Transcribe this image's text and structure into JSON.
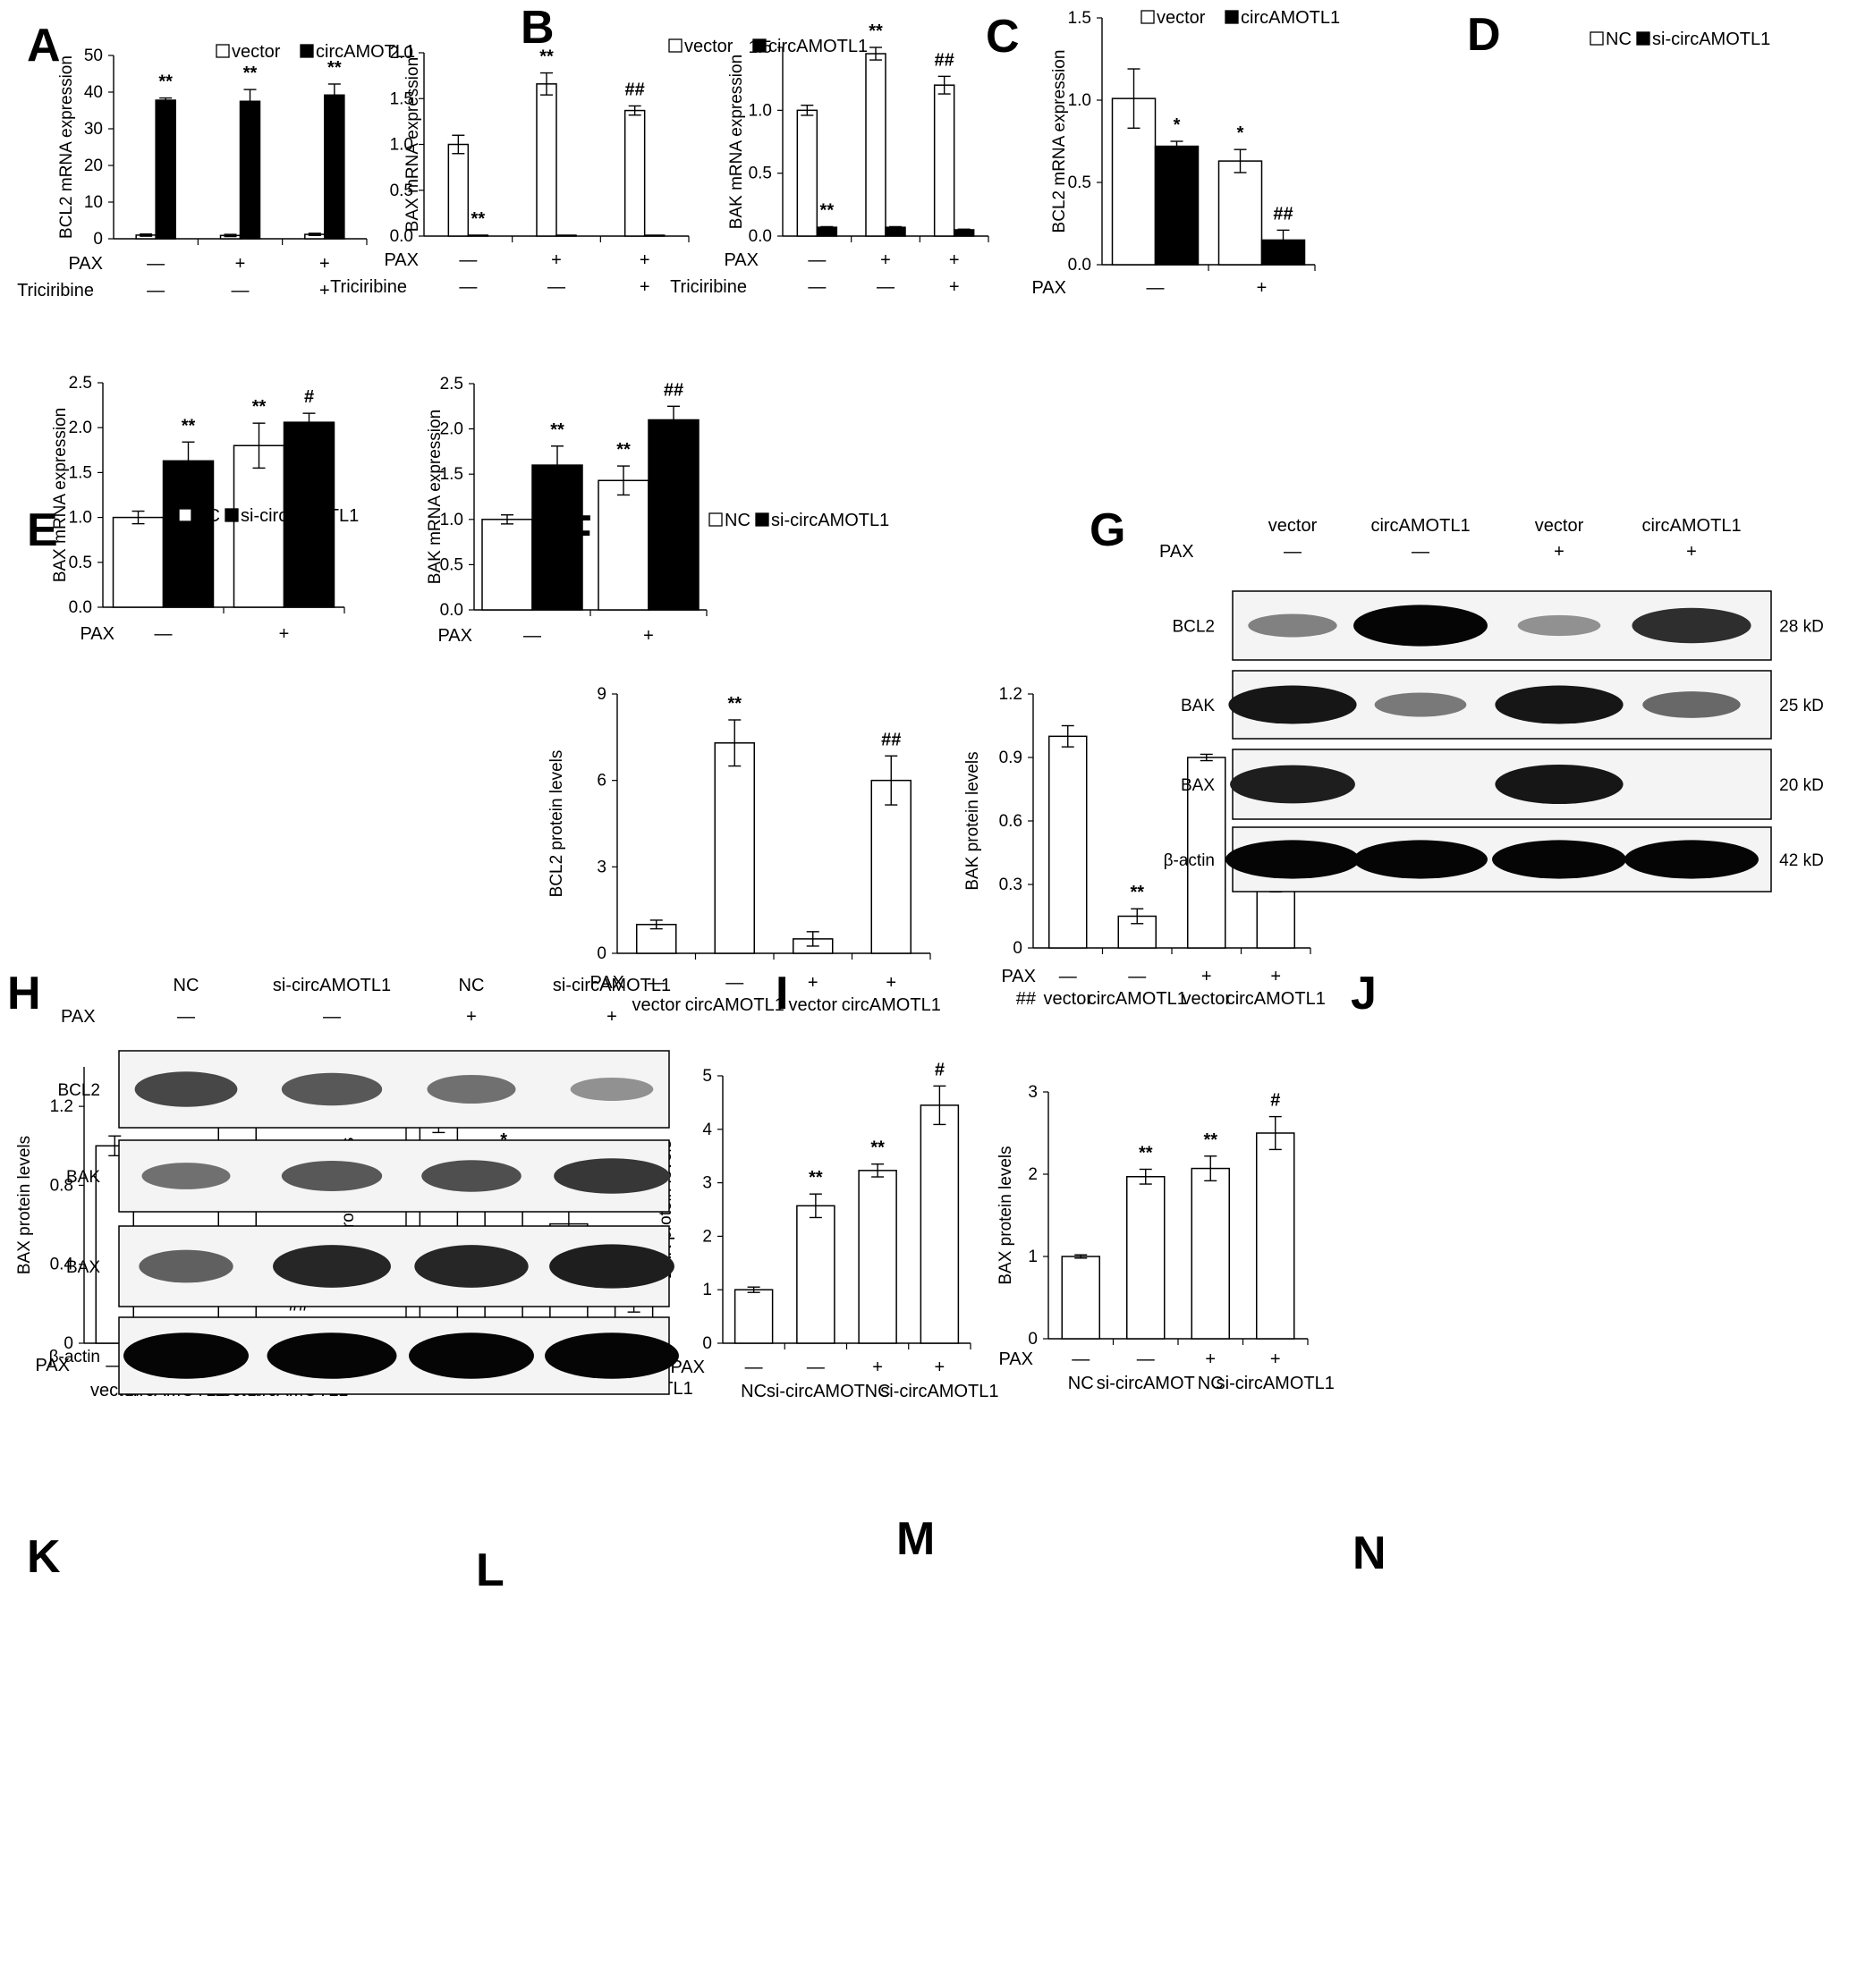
{
  "figure": {
    "panels": {
      "A": "A",
      "B": "B",
      "C": "C",
      "D": "D",
      "E": "E",
      "F": "F",
      "G": "G",
      "H": "H",
      "I": "I",
      "J": "J",
      "K": "K",
      "L": "L",
      "M": "M",
      "N": "N"
    },
    "common": {
      "plus": "+",
      "minus": "—"
    },
    "blots": [
      {
        "id": "G",
        "headers": [
          "vector",
          "circAMOTL1",
          "vector",
          "circAMOTL1"
        ],
        "pax_label": "PAX",
        "pax": [
          "—",
          "—",
          "+",
          "+"
        ],
        "rows": [
          {
            "protein": "BCL2",
            "size": "28 kD",
            "intensity": [
              0.25,
              1.0,
              0.15,
              0.75
            ]
          },
          {
            "protein": "BAK",
            "size": "25 kD",
            "intensity": [
              0.9,
              0.3,
              0.9,
              0.4
            ]
          },
          {
            "protein": "BAX",
            "size": "20 kD",
            "intensity": [
              0.85,
              0.0,
              0.9,
              0.0
            ]
          },
          {
            "protein": "β-actin",
            "size": "42 kD",
            "intensity": [
              1.0,
              1.0,
              1.0,
              1.0
            ]
          }
        ]
      },
      {
        "id": "H",
        "headers": [
          "NC",
          "si-circAMOTL1",
          "NC",
          "si-circAMOTL1"
        ],
        "pax_label": "PAX",
        "pax": [
          "—",
          "—",
          "+",
          "+"
        ],
        "rows": [
          {
            "protein": "BCL2",
            "size": "",
            "intensity": [
              0.6,
              0.5,
              0.35,
              0.15
            ]
          },
          {
            "protein": "BAK",
            "size": "",
            "intensity": [
              0.35,
              0.5,
              0.55,
              0.7
            ]
          },
          {
            "protein": "BAX",
            "size": "",
            "intensity": [
              0.45,
              0.8,
              0.8,
              0.85
            ]
          },
          {
            "protein": "β-actin",
            "size": "",
            "intensity": [
              1.0,
              1.0,
              1.0,
              1.0
            ]
          }
        ]
      }
    ]
  },
  "chart_data": [
    {
      "panel": "A",
      "type": "bar",
      "ylabel": "BCL2 mRNA expression",
      "ylim": [
        0,
        50
      ],
      "yticks": [
        "0",
        "10",
        "20",
        "30",
        "40",
        "50"
      ],
      "legend": [
        "vector",
        "circAMOTL1"
      ],
      "series": [
        {
          "name": "vector",
          "values": [
            1,
            0.9,
            1.2
          ],
          "errors": [
            0.3,
            0.3,
            0.3
          ],
          "sig": [
            "",
            "",
            ""
          ]
        },
        {
          "name": "circAMOTL1",
          "values": [
            37.8,
            37.5,
            39.2
          ],
          "errors": [
            0.6,
            3.2,
            3.0
          ],
          "sig": [
            "**",
            "**",
            "**"
          ]
        }
      ],
      "rows": [
        {
          "label": "PAX",
          "values": [
            "—",
            "+",
            "+"
          ]
        },
        {
          "label": "Triciribine",
          "values": [
            "—",
            "—",
            "+"
          ]
        }
      ]
    },
    {
      "panel": "B",
      "type": "bar",
      "ylabel": "BAX mRNA expression",
      "ylim": [
        0,
        2.0
      ],
      "yticks": [
        "0.0",
        "0.5",
        "1.0",
        "1.5",
        "2.0"
      ],
      "legend": [
        "vector",
        "circAMOTL1"
      ],
      "series": [
        {
          "name": "vector",
          "values": [
            1.0,
            1.66,
            1.37
          ],
          "errors": [
            0.1,
            0.12,
            0.05
          ],
          "sig": [
            "",
            "**",
            "##"
          ]
        },
        {
          "name": "circAMOTL1",
          "values": [
            0.01,
            0.005,
            0.005
          ],
          "errors": [
            0,
            0,
            0
          ],
          "sig": [
            "**",
            "",
            ""
          ]
        }
      ],
      "rows": [
        {
          "label": "PAX",
          "values": [
            "—",
            "+",
            "+"
          ]
        },
        {
          "label": "Triciribine",
          "values": [
            "—",
            "—",
            "+"
          ]
        }
      ]
    },
    {
      "panel": "C",
      "type": "bar",
      "ylabel": "BAK mRNA expression",
      "ylim": [
        0,
        1.5
      ],
      "yticks": [
        "0.0",
        "0.5",
        "1.0",
        "1.5"
      ],
      "legend": [
        "vector",
        "circAMOTL1"
      ],
      "series": [
        {
          "name": "vector",
          "values": [
            1.0,
            1.45,
            1.2
          ],
          "errors": [
            0.04,
            0.05,
            0.07
          ],
          "sig": [
            "",
            "**",
            "##"
          ]
        },
        {
          "name": "circAMOTL1",
          "values": [
            0.07,
            0.07,
            0.05
          ],
          "errors": [
            0.005,
            0.005,
            0.005
          ],
          "sig": [
            "**",
            "",
            ""
          ]
        }
      ],
      "rows": [
        {
          "label": "PAX",
          "values": [
            "—",
            "+",
            "+"
          ]
        },
        {
          "label": "Triciribine",
          "values": [
            "—",
            "—",
            "+"
          ]
        }
      ]
    },
    {
      "panel": "D",
      "type": "bar",
      "ylabel": "BCL2 mRNA expression",
      "ylim": [
        0,
        1.5
      ],
      "yticks": [
        "0.0",
        "0.5",
        "1.0",
        "1.5"
      ],
      "legend": [
        "NC",
        "si-circAMOTL1"
      ],
      "series": [
        {
          "name": "NC",
          "values": [
            1.01,
            0.63
          ],
          "errors": [
            0.18,
            0.07
          ],
          "sig": [
            "",
            "*"
          ]
        },
        {
          "name": "si-circAMOTL1",
          "values": [
            0.72,
            0.15
          ],
          "errors": [
            0.03,
            0.06
          ],
          "sig": [
            "*",
            "##"
          ]
        }
      ],
      "rows": [
        {
          "label": "PAX",
          "values": [
            "—",
            "+"
          ]
        }
      ]
    },
    {
      "panel": "E",
      "type": "bar",
      "ylabel": "BAX mRNA expression",
      "ylim": [
        0,
        2.5
      ],
      "yticks": [
        "0.0",
        "0.5",
        "1.0",
        "1.5",
        "2.0",
        "2.5"
      ],
      "legend": [
        "NC",
        "si-circAMOTL1"
      ],
      "series": [
        {
          "name": "NC",
          "values": [
            1.0,
            1.8
          ],
          "errors": [
            0.07,
            0.25
          ],
          "sig": [
            "",
            "**"
          ]
        },
        {
          "name": "si-circAMOTL1",
          "values": [
            1.63,
            2.06
          ],
          "errors": [
            0.21,
            0.1
          ],
          "sig": [
            "**",
            "#"
          ]
        }
      ],
      "rows": [
        {
          "label": "PAX",
          "values": [
            "—",
            "+"
          ]
        }
      ]
    },
    {
      "panel": "F",
      "type": "bar",
      "ylabel": "BAK mRNA expression",
      "ylim": [
        0,
        2.5
      ],
      "yticks": [
        "0.0",
        "0.5",
        "1.0",
        "1.5",
        "2.0",
        "2.5"
      ],
      "legend": [
        "NC",
        "si-circAMOTL1"
      ],
      "series": [
        {
          "name": "NC",
          "values": [
            1.0,
            1.43
          ],
          "errors": [
            0.05,
            0.16
          ],
          "sig": [
            "",
            "**"
          ]
        },
        {
          "name": "si-circAMOTL1",
          "values": [
            1.6,
            2.1
          ],
          "errors": [
            0.21,
            0.15
          ],
          "sig": [
            "**",
            "##"
          ]
        }
      ],
      "rows": [
        {
          "label": "PAX",
          "values": [
            "—",
            "+"
          ]
        }
      ]
    },
    {
      "panel": "I",
      "type": "bar",
      "ylabel": "BCL2 protein levels",
      "ylim": [
        0,
        9
      ],
      "yticks": [
        "0",
        "3",
        "6",
        "9"
      ],
      "legend": [],
      "series": [
        {
          "name": "",
          "values": [
            1.0,
            7.3,
            0.5,
            6.0
          ],
          "errors": [
            0.15,
            0.8,
            0.25,
            0.85
          ],
          "sig": [
            "",
            "**",
            "",
            "##"
          ]
        }
      ],
      "rows": [
        {
          "label": "PAX",
          "values": [
            "—",
            "—",
            "+",
            "+"
          ]
        },
        {
          "label": "",
          "values": [
            "vector",
            "circAMOTL1",
            "vector",
            "circAMOTL1"
          ]
        }
      ]
    },
    {
      "panel": "J",
      "type": "bar",
      "ylabel": "BAK protein levels",
      "ylim": [
        0,
        1.2
      ],
      "yticks": [
        "0",
        "0.3",
        "0.6",
        "0.9",
        "1.2"
      ],
      "legend": [],
      "series": [
        {
          "name": "",
          "values": [
            1.0,
            0.15,
            0.9,
            0.3
          ],
          "errors": [
            0.05,
            0.035,
            0.015,
            0.035
          ],
          "sig": [
            "",
            "**",
            "",
            "##"
          ]
        }
      ],
      "rows": [
        {
          "label": "PAX",
          "values": [
            "—",
            "—",
            "+",
            "+"
          ]
        },
        {
          "label": "##",
          "values": [
            "vector",
            "circAMOTL1",
            "vector",
            "circAMOTL1"
          ]
        }
      ]
    },
    {
      "panel": "K",
      "type": "bar",
      "ylabel": "BAX protein levels",
      "ylim": [
        0,
        1.4
      ],
      "yticks": [
        "0",
        "0.4",
        "0.8",
        "1.2"
      ],
      "legend": [],
      "series": [
        {
          "name": "",
          "values": [
            1.0,
            0.09,
            1.17,
            0.1
          ],
          "errors": [
            0.05,
            0.02,
            0.05,
            0.01
          ],
          "sig": [
            "",
            "**",
            "",
            "##"
          ]
        }
      ],
      "rows": [
        {
          "label": "PAX",
          "values": [
            "—",
            "—",
            "+",
            "+"
          ]
        },
        {
          "label": "",
          "values": [
            "vector",
            "circAMOTL1",
            "vector",
            "circAMOTL1"
          ]
        }
      ]
    },
    {
      "panel": "L",
      "type": "bar",
      "ylabel": "BCL2 protein levels",
      "ylim": [
        0,
        1.2
      ],
      "yticks": [
        "0",
        "0.4",
        "0.8",
        "1.2"
      ],
      "legend": [],
      "series": [
        {
          "name": "",
          "values": [
            1.0,
            0.78,
            0.54,
            0.18
          ],
          "errors": [
            0.04,
            0.07,
            0.07,
            0.045
          ],
          "sig": [
            "",
            "*",
            "**",
            "##"
          ]
        }
      ],
      "rows": [
        {
          "label": "PAX",
          "values": [
            "—",
            "—",
            "+",
            "+"
          ]
        },
        {
          "label": "",
          "values": [
            "NC",
            "si-circAMOT",
            "NC",
            "si-circAMOTL1"
          ]
        }
      ]
    },
    {
      "panel": "M",
      "type": "bar",
      "ylabel": "BAK protein levels",
      "ylim": [
        0,
        5
      ],
      "yticks": [
        "0",
        "1",
        "2",
        "3",
        "4",
        "5"
      ],
      "legend": [],
      "series": [
        {
          "name": "",
          "values": [
            1.0,
            2.57,
            3.23,
            4.45
          ],
          "errors": [
            0.05,
            0.22,
            0.12,
            0.36
          ],
          "sig": [
            "",
            "**",
            "**",
            "#"
          ]
        }
      ],
      "rows": [
        {
          "label": "PAX",
          "values": [
            "—",
            "—",
            "+",
            "+"
          ]
        },
        {
          "label": "",
          "values": [
            "NC",
            "si-circAMOT",
            "NC",
            "si-circAMOTL1"
          ]
        }
      ]
    },
    {
      "panel": "N",
      "type": "bar",
      "ylabel": "BAX protein levels",
      "ylim": [
        0,
        3
      ],
      "yticks": [
        "0",
        "1",
        "2",
        "3"
      ],
      "legend": [],
      "series": [
        {
          "name": "",
          "values": [
            1.0,
            1.97,
            2.07,
            2.5
          ],
          "errors": [
            0.02,
            0.09,
            0.15,
            0.2
          ],
          "sig": [
            "",
            "**",
            "**",
            "#"
          ]
        }
      ],
      "rows": [
        {
          "label": "PAX",
          "values": [
            "—",
            "—",
            "+",
            "+"
          ]
        },
        {
          "label": "",
          "values": [
            "NC",
            "si-circAMOT",
            "NC",
            "si-circAMOTL1"
          ]
        }
      ]
    }
  ]
}
